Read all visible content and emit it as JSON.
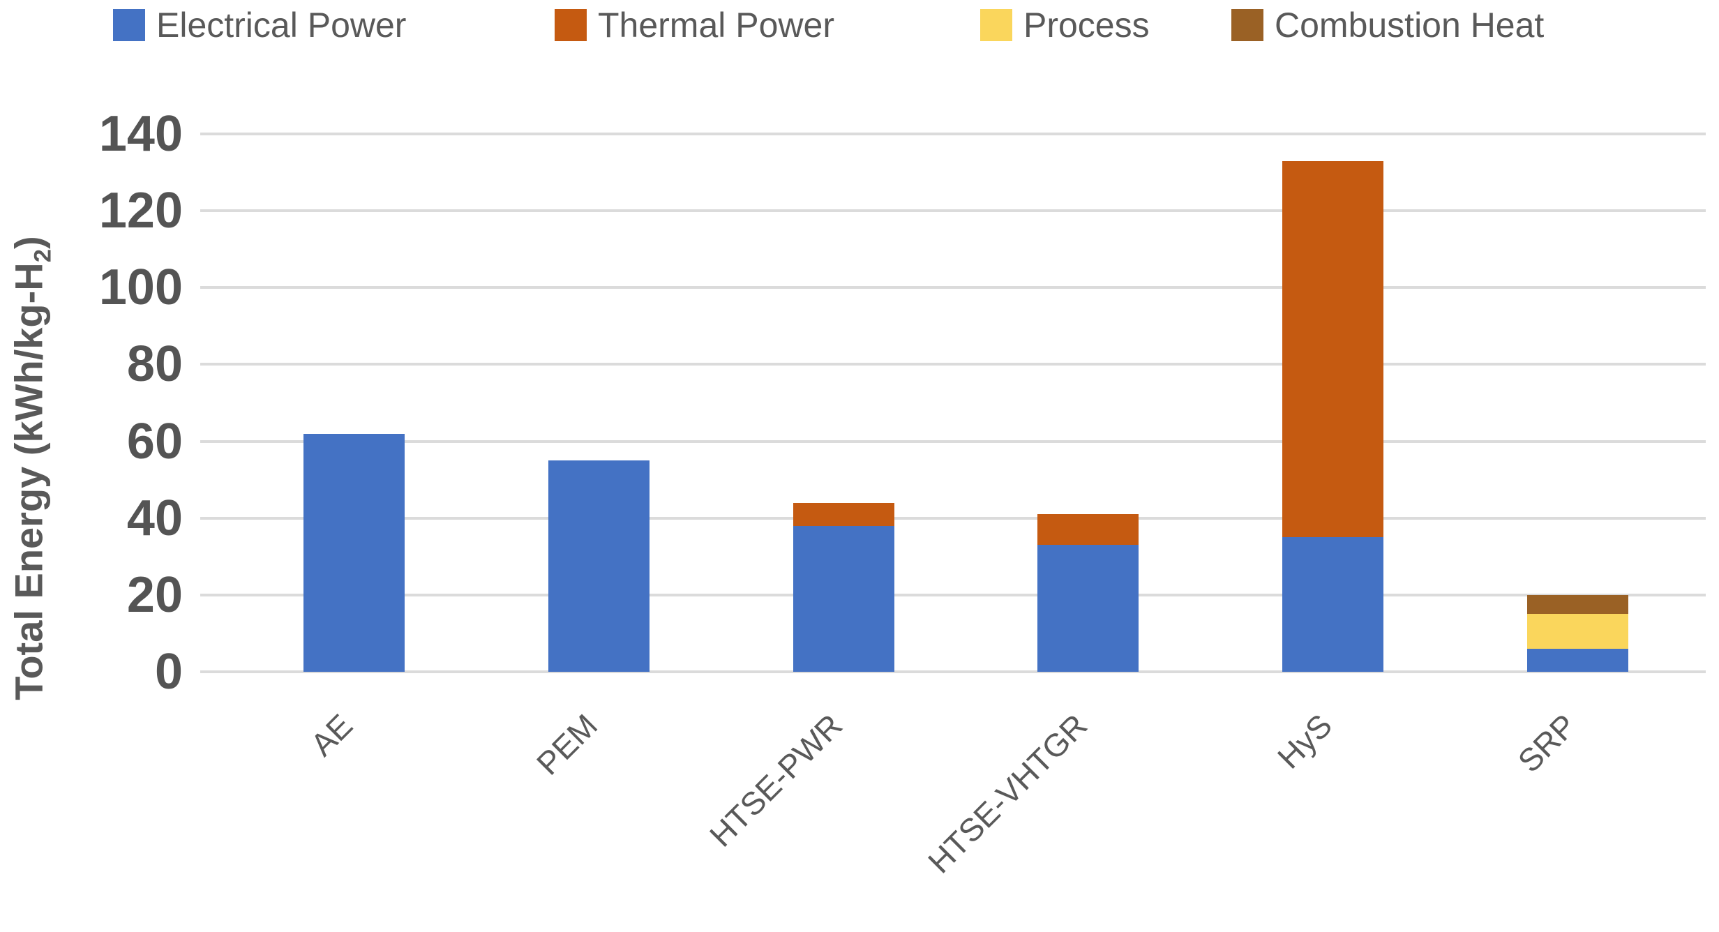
{
  "chart_data": {
    "type": "bar",
    "stacked": true,
    "title": "",
    "xlabel": "",
    "ylabel": "Total Energy (kWh/kg-H2)",
    "ylabel_prefix": "Total Energy (kWh/kg-H",
    "ylabel_sub": "2",
    "ylabel_suffix": ")",
    "categories": [
      "AE",
      "PEM",
      "HTSE-PWR",
      "HTSE-VHTGR",
      "HyS",
      "SRP"
    ],
    "series": [
      {
        "name": "Electrical Power",
        "color": "#4472C4",
        "values": [
          62,
          55,
          38,
          33,
          35,
          6
        ]
      },
      {
        "name": "Thermal Power",
        "color": "#C55A11",
        "values": [
          0,
          0,
          6,
          8,
          98,
          0
        ]
      },
      {
        "name": "Process",
        "color": "#FAD65C",
        "values": [
          0,
          0,
          0,
          0,
          0,
          9
        ]
      },
      {
        "name": "Combustion Heat",
        "color": "#9A6125",
        "values": [
          0,
          0,
          0,
          0,
          0,
          5
        ]
      }
    ],
    "totals": [
      62,
      55,
      44,
      41,
      133,
      20
    ],
    "ylim": [
      0,
      140
    ],
    "ytick_step": 20,
    "yticks": [
      0,
      20,
      40,
      60,
      80,
      100,
      120,
      140
    ],
    "grid": "horizontal-only",
    "legend_position": "top",
    "colors": {
      "gridline": "#DBDBDB",
      "tick_text": "#545454",
      "label_text": "#595959",
      "background": "#FFFFFF"
    }
  }
}
